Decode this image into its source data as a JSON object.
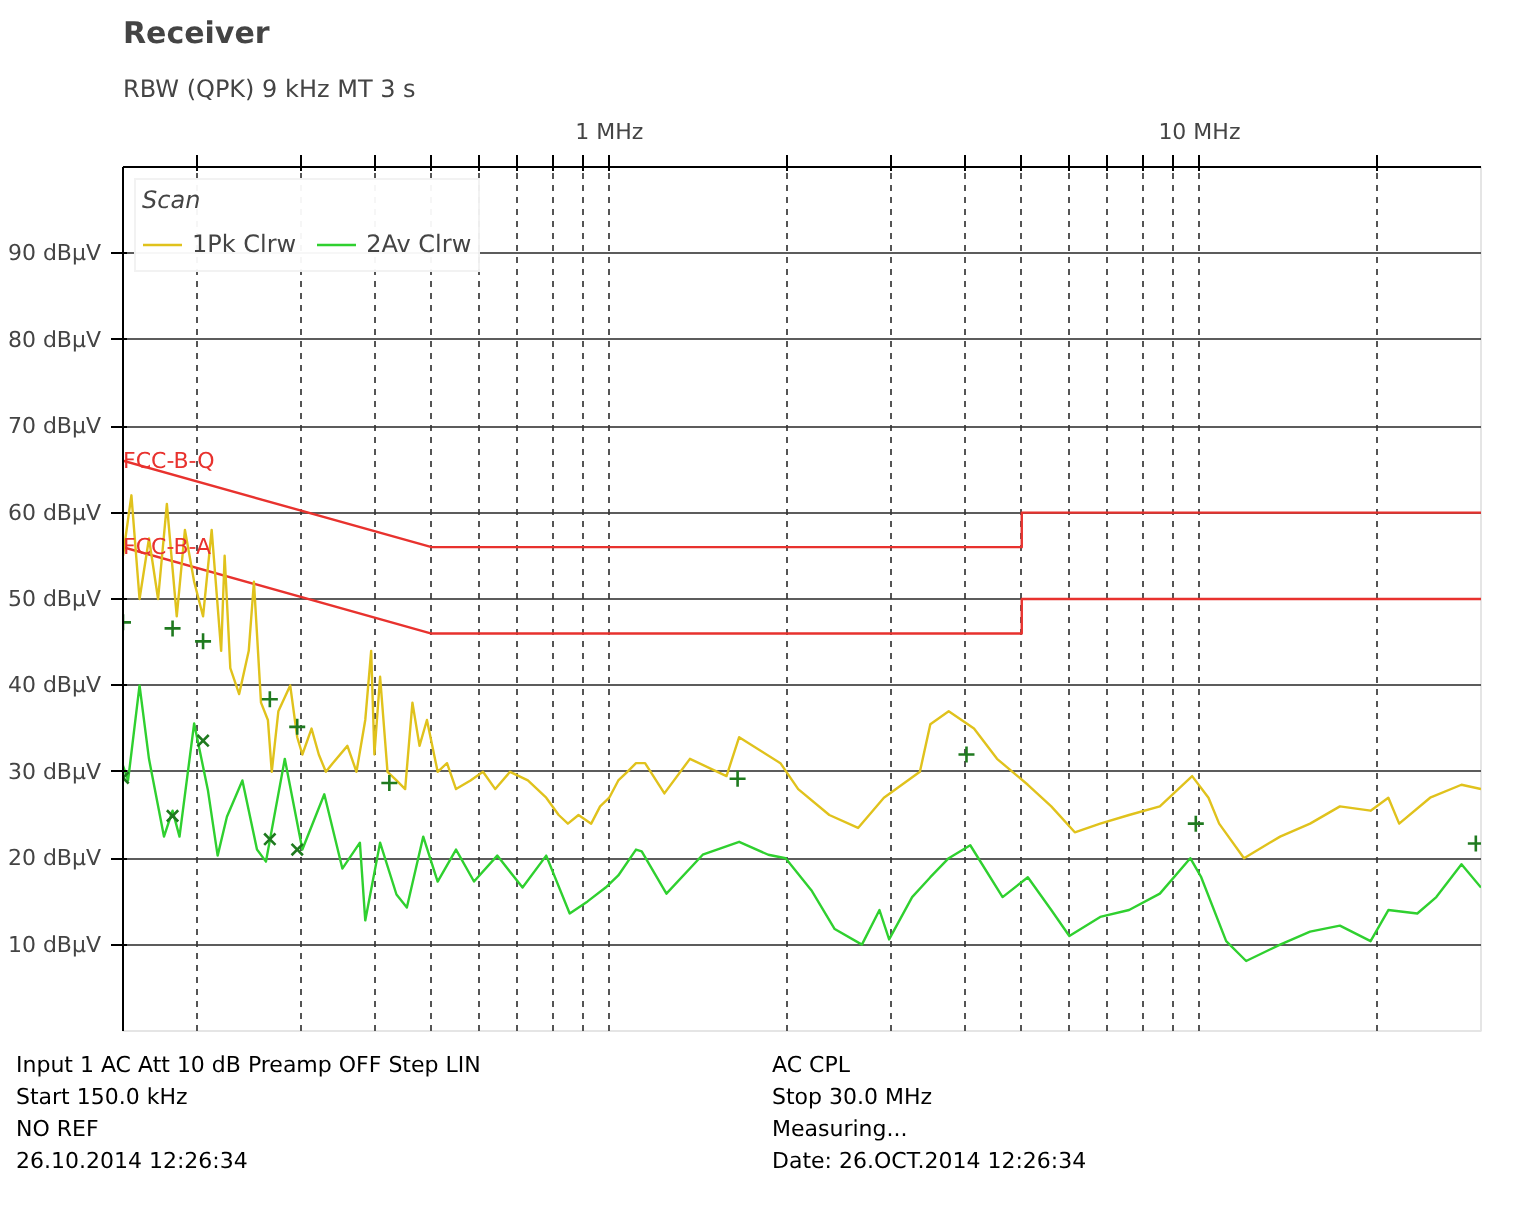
{
  "chart_data": {
    "type": "line",
    "title": "Receiver",
    "subtitle": "RBW (QPK) 9 kHz   MT 3 s",
    "legend_title": "Scan",
    "legend": "top left",
    "log": "x",
    "grid": true,
    "marker": "none",
    "line_style": "solid",
    "xlim": [
      0.15,
      30
    ],
    "ylim": [
      0,
      100
    ],
    "xticks": [
      {
        "value": 0.2,
        "label": null
      },
      {
        "value": 0.3,
        "label": null
      },
      {
        "value": 0.4,
        "label": null
      },
      {
        "value": 0.5,
        "label": null
      },
      {
        "value": 0.6,
        "label": null
      },
      {
        "value": 0.7,
        "label": null
      },
      {
        "value": 0.8,
        "label": null
      },
      {
        "value": 0.9,
        "label": null
      },
      {
        "value": 1,
        "label": "1 MHz"
      },
      {
        "value": 2,
        "label": null
      },
      {
        "value": 3,
        "label": null
      },
      {
        "value": 4,
        "label": null
      },
      {
        "value": 5,
        "label": null
      },
      {
        "value": 6,
        "label": null
      },
      {
        "value": 7,
        "label": null
      },
      {
        "value": 8,
        "label": null
      },
      {
        "value": 9,
        "label": null
      },
      {
        "value": 10,
        "label": "10 MHz"
      },
      {
        "value": 20,
        "label": null
      }
    ],
    "yticks": [
      {
        "value": 10,
        "label": "10 dBµV"
      },
      {
        "value": 20,
        "label": "20 dBµV"
      },
      {
        "value": 30,
        "label": "30 dBµV"
      },
      {
        "value": 40,
        "label": "40 dBµV"
      },
      {
        "value": 50,
        "label": "50 dBµV"
      },
      {
        "value": 60,
        "label": "60 dBµV"
      },
      {
        "value": 70,
        "label": "70 dBµV"
      },
      {
        "value": 80,
        "label": "80 dBµV"
      },
      {
        "value": 90,
        "label": "90 dBµV"
      }
    ],
    "series": [
      {
        "color": "#e8322e",
        "x": [
          0.15,
          0.5,
          5,
          5,
          30
        ],
        "values": [
          66,
          56,
          56,
          60,
          60
        ]
      },
      {
        "color": "#e8322e",
        "x": [
          0.15,
          0.5,
          5,
          5,
          30
        ],
        "values": [
          56,
          46,
          46,
          50,
          50
        ]
      },
      {
        "name": "1Pk Clrw",
        "color": "#e0c21c",
        "x": [
          0.15,
          0.155,
          0.16,
          0.166,
          0.172,
          0.178,
          0.185,
          0.191,
          0.198,
          0.205,
          0.212,
          0.22,
          0.223,
          0.228,
          0.236,
          0.245,
          0.25,
          0.257,
          0.264,
          0.268,
          0.275,
          0.288,
          0.296,
          0.302,
          0.313,
          0.322,
          0.331,
          0.34,
          0.36,
          0.373,
          0.386,
          0.395,
          0.4,
          0.409,
          0.421,
          0.436,
          0.451,
          0.464,
          0.477,
          0.491,
          0.512,
          0.531,
          0.55,
          0.582,
          0.611,
          0.641,
          0.679,
          0.728,
          0.782,
          0.821,
          0.851,
          0.887,
          0.932,
          0.965,
          1.0,
          1.036,
          1.073,
          1.11,
          1.15,
          1.24,
          1.37,
          1.58,
          1.66,
          1.95,
          2.09,
          2.36,
          2.64,
          2.92,
          3.36,
          3.5,
          3.76,
          4.15,
          4.54,
          5.12,
          5.61,
          6.15,
          6.79,
          7.6,
          8.57,
          9.72,
          10.36,
          10.8,
          11.9,
          13.7,
          15.4,
          17.3,
          19.5,
          20.9,
          21.8,
          24.6,
          27.8,
          30
        ],
        "values": [
          55,
          62,
          50,
          57,
          50,
          61,
          48,
          58,
          52,
          48,
          58,
          44,
          55,
          42,
          39,
          44,
          52,
          38,
          36,
          30,
          37,
          40,
          34,
          32,
          35,
          32,
          30,
          31,
          33,
          30,
          36,
          44,
          32,
          41,
          30,
          29,
          28,
          38,
          33,
          36,
          30,
          31,
          28,
          29,
          30,
          28,
          30,
          29,
          27,
          25,
          24,
          25,
          24,
          26,
          27,
          29,
          30,
          31,
          31,
          27.5,
          31.5,
          29.5,
          34,
          31,
          28,
          25,
          23.5,
          27,
          30,
          35.5,
          37,
          35,
          31.5,
          28.5,
          26,
          23,
          24,
          25,
          26,
          29.5,
          27,
          24,
          20,
          22.5,
          24,
          26,
          25.5,
          27,
          24,
          27,
          28.5,
          28
        ]
      },
      {
        "name": "2Av Clrw",
        "color": "#2fd02f",
        "x": [
          0.15,
          0.153,
          0.16,
          0.166,
          0.176,
          0.182,
          0.187,
          0.198,
          0.209,
          0.217,
          0.225,
          0.239,
          0.253,
          0.262,
          0.282,
          0.302,
          0.329,
          0.353,
          0.378,
          0.386,
          0.409,
          0.436,
          0.454,
          0.484,
          0.512,
          0.55,
          0.59,
          0.646,
          0.713,
          0.782,
          0.857,
          0.919,
          0.986,
          1.036,
          1.11,
          1.135,
          1.25,
          1.44,
          1.66,
          1.86,
          1.99,
          2.2,
          2.41,
          2.68,
          2.87,
          2.98,
          3.26,
          3.5,
          3.76,
          4.09,
          4.64,
          5.12,
          5.61,
          6.02,
          6.79,
          7.6,
          8.57,
          9.65,
          10.07,
          11.1,
          12.0,
          13.7,
          15.4,
          17.3,
          19.5,
          20.9,
          23.4,
          25.2,
          27.8,
          30
        ],
        "values": [
          30.7,
          29,
          40,
          31.5,
          22.5,
          25.5,
          22.5,
          35.6,
          27.8,
          20.3,
          24.8,
          29,
          21,
          19.6,
          31.5,
          21,
          27.4,
          18.8,
          21.8,
          12.8,
          21.8,
          15.8,
          14.3,
          22.5,
          17.3,
          21,
          17.3,
          20.3,
          16.6,
          20.3,
          13.6,
          15,
          16.6,
          18,
          21,
          20.8,
          15.9,
          20.4,
          21.9,
          20.4,
          20,
          16.3,
          11.8,
          10,
          14,
          10.6,
          15.5,
          17.8,
          20,
          21.5,
          15.5,
          17.8,
          14,
          11,
          13.2,
          14,
          15.9,
          20,
          17.8,
          10.4,
          8.1,
          10,
          11.5,
          12.2,
          10.4,
          14,
          13.6,
          15.5,
          19.3,
          16.6
        ]
      },
      {
        "type": "scatter",
        "marker": "cross",
        "color": "#1f7a1f",
        "x": [
          0.15,
          0.182,
          0.205,
          0.266,
          0.296,
          0.424,
          1.65,
          4.03,
          9.86,
          29.4
        ],
        "values": [
          47.3,
          46.6,
          45.1,
          38.4,
          35.2,
          28.7,
          29.2,
          32,
          24,
          21.7
        ]
      },
      {
        "type": "scatter",
        "marker": "x",
        "color": "#1f7a1f",
        "x": [
          0.15,
          0.182,
          0.205,
          0.266,
          0.296
        ],
        "values": [
          29.3,
          24.9,
          33.6,
          22.2,
          21
        ]
      }
    ],
    "annotations": [
      {
        "text": "FCC-B-Q",
        "x": 0.15,
        "y": 66
      },
      {
        "text": "FCC-B-A",
        "x": 0.15,
        "y": 56
      },
      "Input 1 AC   Att 10 dB   Preamp OFF   Step LIN",
      "AC CPL",
      "Start 150.0 kHz",
      "Stop 30.0 MHz",
      "NO REF",
      "Measuring...",
      "26.10.2014 12:26:34",
      "Date: 26.OCT.2014 12:26:34"
    ]
  }
}
